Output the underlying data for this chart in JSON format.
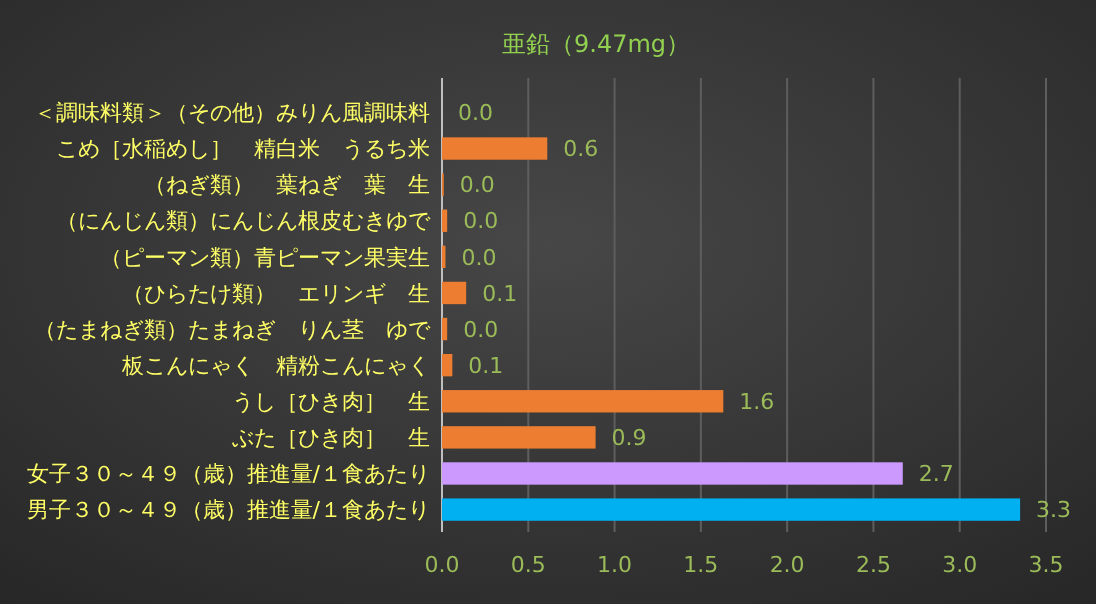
{
  "chart_data": {
    "type": "bar",
    "orientation": "horizontal",
    "title": "亜鉛（9.47mg）",
    "categories": [
      "＜調味料類＞（その他）みりん風調味料",
      "こめ［水稲めし］　精白米　うるち米",
      "（ねぎ類）　葉ねぎ　葉　生",
      "（にんじん類）にんじん根皮むきゆで",
      "（ピーマン類）青ピーマン果実生",
      "（ひらたけ類）　エリンギ　生",
      "（たまねぎ類）たまねぎ　りん茎　ゆで",
      "板こんにゃく　精粉こんにゃく",
      "うし［ひき肉］　生",
      "ぶた［ひき肉］　生",
      "女子３０～４９（歳）推進量/１食あたり",
      "男子３０～４９（歳）推進量/１食あたり"
    ],
    "values": [
      0.0,
      0.61,
      0.01,
      0.03,
      0.02,
      0.14,
      0.03,
      0.06,
      1.63,
      0.89,
      2.67,
      3.35
    ],
    "value_labels": [
      "0.0",
      "0.6",
      "0.0",
      "0.0",
      "0.0",
      "0.1",
      "0.0",
      "0.1",
      "1.6",
      "0.9",
      "2.7",
      "3.3"
    ],
    "colors": [
      "#ed7d31",
      "#ed7d31",
      "#ed7d31",
      "#ed7d31",
      "#ed7d31",
      "#ed7d31",
      "#ed7d31",
      "#ed7d31",
      "#ed7d31",
      "#ed7d31",
      "#cc99ff",
      "#00b0f0"
    ],
    "xlim": [
      0,
      3.5
    ],
    "xticks": [
      {
        "value": 0,
        "label": "0.0"
      },
      {
        "value": 0.5,
        "label": "0.5"
      },
      {
        "value": 1,
        "label": "1.0"
      },
      {
        "value": 1.5,
        "label": "1.5"
      },
      {
        "value": 2,
        "label": "2.0"
      },
      {
        "value": 2.5,
        "label": "2.5"
      },
      {
        "value": 3,
        "label": "3.0"
      },
      {
        "value": 3.5,
        "label": "3.5"
      }
    ],
    "grid": "x"
  }
}
